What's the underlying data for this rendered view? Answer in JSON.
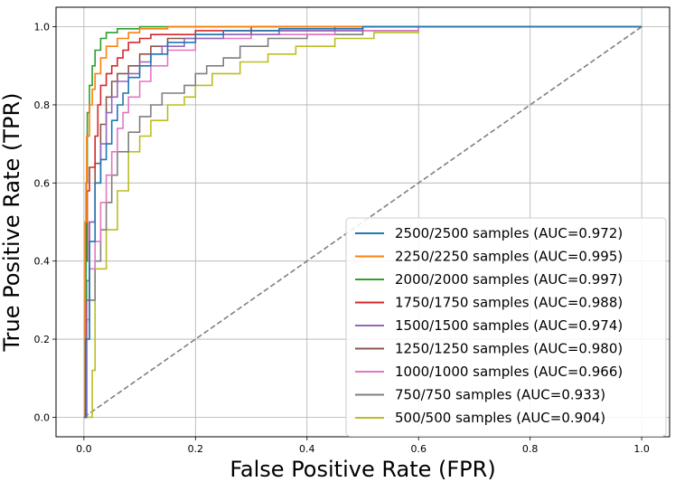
{
  "chart_data": {
    "type": "line",
    "title": "",
    "xlabel": "False Positive Rate (FPR)",
    "ylabel": "True Positive Rate (TPR)",
    "xlim": [
      -0.05,
      1.05
    ],
    "ylim": [
      -0.05,
      1.05
    ],
    "grid": true,
    "legend_position": "bottom-right",
    "x_ticks": [
      "0.0",
      "0.2",
      "0.4",
      "0.6",
      "0.8",
      "1.0"
    ],
    "y_ticks": [
      "0.0",
      "0.2",
      "0.4",
      "0.6",
      "0.8",
      "1.0"
    ],
    "series": [
      {
        "name": "2500/2500 samples (AUC=0.972)",
        "color": "#1f77b4",
        "points": [
          [
            0,
            0
          ],
          [
            0.003,
            0.2
          ],
          [
            0.01,
            0.45
          ],
          [
            0.02,
            0.6
          ],
          [
            0.03,
            0.66
          ],
          [
            0.04,
            0.7
          ],
          [
            0.05,
            0.76
          ],
          [
            0.06,
            0.8
          ],
          [
            0.07,
            0.83
          ],
          [
            0.08,
            0.87
          ],
          [
            0.1,
            0.9
          ],
          [
            0.12,
            0.93
          ],
          [
            0.15,
            0.96
          ],
          [
            0.2,
            0.98
          ],
          [
            0.25,
            0.99
          ],
          [
            0.35,
            0.995
          ],
          [
            0.5,
            1.0
          ],
          [
            1,
            1
          ]
        ]
      },
      {
        "name": "2250/2250 samples (AUC=0.995)",
        "color": "#ff7f0e",
        "points": [
          [
            0,
            0
          ],
          [
            0.002,
            0.5
          ],
          [
            0.005,
            0.72
          ],
          [
            0.01,
            0.8
          ],
          [
            0.015,
            0.84
          ],
          [
            0.02,
            0.88
          ],
          [
            0.03,
            0.92
          ],
          [
            0.04,
            0.95
          ],
          [
            0.06,
            0.97
          ],
          [
            0.08,
            0.985
          ],
          [
            0.1,
            0.995
          ],
          [
            0.15,
            1.0
          ],
          [
            1,
            1
          ]
        ]
      },
      {
        "name": "2000/2000 samples (AUC=0.997)",
        "color": "#2ca02c",
        "points": [
          [
            0,
            0
          ],
          [
            0.002,
            0.3
          ],
          [
            0.004,
            0.6
          ],
          [
            0.006,
            0.78
          ],
          [
            0.01,
            0.85
          ],
          [
            0.015,
            0.9
          ],
          [
            0.02,
            0.94
          ],
          [
            0.03,
            0.97
          ],
          [
            0.04,
            0.985
          ],
          [
            0.06,
            0.995
          ],
          [
            0.1,
            1.0
          ],
          [
            1,
            1
          ]
        ]
      },
      {
        "name": "1750/1750 samples (AUC=0.988)",
        "color": "#d62728",
        "points": [
          [
            0,
            0
          ],
          [
            0.003,
            0.4
          ],
          [
            0.006,
            0.58
          ],
          [
            0.01,
            0.64
          ],
          [
            0.02,
            0.72
          ],
          [
            0.025,
            0.8
          ],
          [
            0.03,
            0.85
          ],
          [
            0.04,
            0.88
          ],
          [
            0.05,
            0.9
          ],
          [
            0.06,
            0.92
          ],
          [
            0.07,
            0.94
          ],
          [
            0.08,
            0.96
          ],
          [
            0.1,
            0.97
          ],
          [
            0.12,
            0.98
          ],
          [
            0.2,
            0.99
          ],
          [
            0.3,
            1.0
          ],
          [
            1,
            1
          ]
        ]
      },
      {
        "name": "1500/1500 samples (AUC=0.974)",
        "color": "#9467bd",
        "points": [
          [
            0,
            0
          ],
          [
            0.005,
            0.35
          ],
          [
            0.01,
            0.5
          ],
          [
            0.02,
            0.6
          ],
          [
            0.03,
            0.7
          ],
          [
            0.04,
            0.78
          ],
          [
            0.05,
            0.82
          ],
          [
            0.06,
            0.86
          ],
          [
            0.08,
            0.88
          ],
          [
            0.1,
            0.91
          ],
          [
            0.12,
            0.93
          ],
          [
            0.14,
            0.95
          ],
          [
            0.18,
            0.97
          ],
          [
            0.25,
            0.98
          ],
          [
            0.35,
            0.99
          ],
          [
            0.5,
            1.0
          ],
          [
            1,
            1
          ]
        ]
      },
      {
        "name": "1250/1250 samples (AUC=0.980)",
        "color": "#8c564b",
        "points": [
          [
            0,
            0
          ],
          [
            0.004,
            0.3
          ],
          [
            0.01,
            0.5
          ],
          [
            0.02,
            0.65
          ],
          [
            0.03,
            0.75
          ],
          [
            0.04,
            0.82
          ],
          [
            0.05,
            0.86
          ],
          [
            0.06,
            0.88
          ],
          [
            0.08,
            0.9
          ],
          [
            0.1,
            0.93
          ],
          [
            0.12,
            0.95
          ],
          [
            0.15,
            0.97
          ],
          [
            0.2,
            0.98
          ],
          [
            0.3,
            0.99
          ],
          [
            0.45,
            1.0
          ],
          [
            1,
            1
          ]
        ]
      },
      {
        "name": "1000/1000 samples (AUC=0.966)",
        "color": "#e377c2",
        "points": [
          [
            0,
            0
          ],
          [
            0.005,
            0.25
          ],
          [
            0.01,
            0.38
          ],
          [
            0.02,
            0.45
          ],
          [
            0.03,
            0.55
          ],
          [
            0.04,
            0.62
          ],
          [
            0.05,
            0.68
          ],
          [
            0.06,
            0.74
          ],
          [
            0.07,
            0.78
          ],
          [
            0.08,
            0.82
          ],
          [
            0.1,
            0.86
          ],
          [
            0.12,
            0.9
          ],
          [
            0.15,
            0.94
          ],
          [
            0.2,
            0.97
          ],
          [
            0.3,
            0.98
          ],
          [
            0.45,
            0.99
          ],
          [
            0.6,
            1.0
          ],
          [
            1,
            1
          ]
        ]
      },
      {
        "name": "750/750 samples (AUC=0.933)",
        "color": "#7f7f7f",
        "points": [
          [
            0,
            0
          ],
          [
            0.005,
            0.2
          ],
          [
            0.01,
            0.3
          ],
          [
            0.02,
            0.4
          ],
          [
            0.03,
            0.48
          ],
          [
            0.04,
            0.55
          ],
          [
            0.05,
            0.62
          ],
          [
            0.06,
            0.68
          ],
          [
            0.08,
            0.73
          ],
          [
            0.1,
            0.77
          ],
          [
            0.12,
            0.8
          ],
          [
            0.14,
            0.83
          ],
          [
            0.18,
            0.85
          ],
          [
            0.2,
            0.88
          ],
          [
            0.22,
            0.9
          ],
          [
            0.25,
            0.92
          ],
          [
            0.28,
            0.95
          ],
          [
            0.33,
            0.97
          ],
          [
            0.4,
            0.98
          ],
          [
            0.5,
            0.99
          ],
          [
            0.6,
            1.0
          ],
          [
            1,
            1
          ]
        ]
      },
      {
        "name": "500/500 samples (AUC=0.904)",
        "color": "#bcbd22",
        "points": [
          [
            0,
            0
          ],
          [
            0.015,
            0.12
          ],
          [
            0.02,
            0.38
          ],
          [
            0.04,
            0.48
          ],
          [
            0.06,
            0.58
          ],
          [
            0.08,
            0.68
          ],
          [
            0.1,
            0.72
          ],
          [
            0.12,
            0.76
          ],
          [
            0.15,
            0.8
          ],
          [
            0.18,
            0.82
          ],
          [
            0.2,
            0.85
          ],
          [
            0.23,
            0.88
          ],
          [
            0.28,
            0.91
          ],
          [
            0.33,
            0.93
          ],
          [
            0.38,
            0.95
          ],
          [
            0.45,
            0.97
          ],
          [
            0.52,
            0.985
          ],
          [
            0.6,
            1.0
          ],
          [
            1,
            1
          ]
        ]
      }
    ],
    "reference_line": {
      "name": "chance",
      "points": [
        [
          0,
          0
        ],
        [
          1,
          1
        ]
      ],
      "color": "#808080",
      "style": "dashed"
    }
  }
}
